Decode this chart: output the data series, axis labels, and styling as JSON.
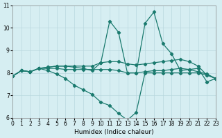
{
  "xlabel": "Humidex (Indice chaleur)",
  "bg_color": "#d6eef2",
  "grid_color": "#b8d8de",
  "line_color": "#1a7a6e",
  "xmin": 0,
  "xmax": 23,
  "ymin": 6,
  "ymax": 11,
  "lines": [
    {
      "x": [
        0,
        1,
        2,
        3,
        4,
        5,
        6,
        7,
        8,
        9,
        10,
        11,
        12,
        13,
        14,
        15,
        16,
        17,
        18,
        19,
        20,
        21,
        22,
        23
      ],
      "y": [
        7.85,
        8.1,
        8.05,
        8.2,
        8.1,
        7.95,
        7.75,
        7.45,
        7.25,
        7.05,
        6.7,
        6.55,
        6.2,
        5.9,
        6.25,
        8.0,
        8.0,
        8.0,
        8.0,
        8.0,
        8.0,
        8.0,
        7.9,
        7.75
      ]
    },
    {
      "x": [
        0,
        1,
        2,
        3,
        4,
        5,
        6,
        7,
        8,
        9,
        10,
        11,
        12,
        13,
        14,
        15,
        16,
        17,
        18,
        19,
        20,
        21,
        22,
        23
      ],
      "y": [
        7.85,
        8.1,
        8.05,
        8.2,
        8.2,
        8.2,
        8.15,
        8.15,
        8.15,
        8.15,
        8.15,
        8.15,
        8.1,
        8.0,
        8.0,
        8.05,
        8.1,
        8.1,
        8.15,
        8.2,
        8.15,
        8.05,
        7.95,
        7.75
      ]
    },
    {
      "x": [
        0,
        1,
        2,
        3,
        4,
        5,
        6,
        7,
        8,
        9,
        10,
        11,
        12,
        13,
        14,
        15,
        16,
        17,
        18,
        19,
        20,
        21,
        22,
        23
      ],
      "y": [
        7.85,
        8.1,
        8.05,
        8.2,
        8.25,
        8.3,
        8.3,
        8.3,
        8.3,
        8.3,
        8.45,
        8.5,
        8.5,
        8.4,
        8.35,
        8.4,
        8.45,
        8.5,
        8.55,
        8.6,
        8.5,
        8.3,
        7.9,
        7.75
      ]
    },
    {
      "x": [
        0,
        1,
        2,
        3,
        4,
        5,
        6,
        7,
        8,
        9,
        10,
        11,
        12,
        13,
        14,
        15,
        16,
        17,
        18,
        19,
        20,
        21,
        22,
        23
      ],
      "y": [
        7.85,
        8.1,
        8.05,
        8.2,
        8.25,
        8.3,
        8.3,
        8.25,
        8.2,
        8.1,
        8.45,
        10.3,
        9.8,
        8.0,
        8.0,
        10.2,
        10.7,
        9.3,
        8.85,
        8.1,
        8.15,
        8.2,
        7.6,
        7.75
      ]
    }
  ]
}
